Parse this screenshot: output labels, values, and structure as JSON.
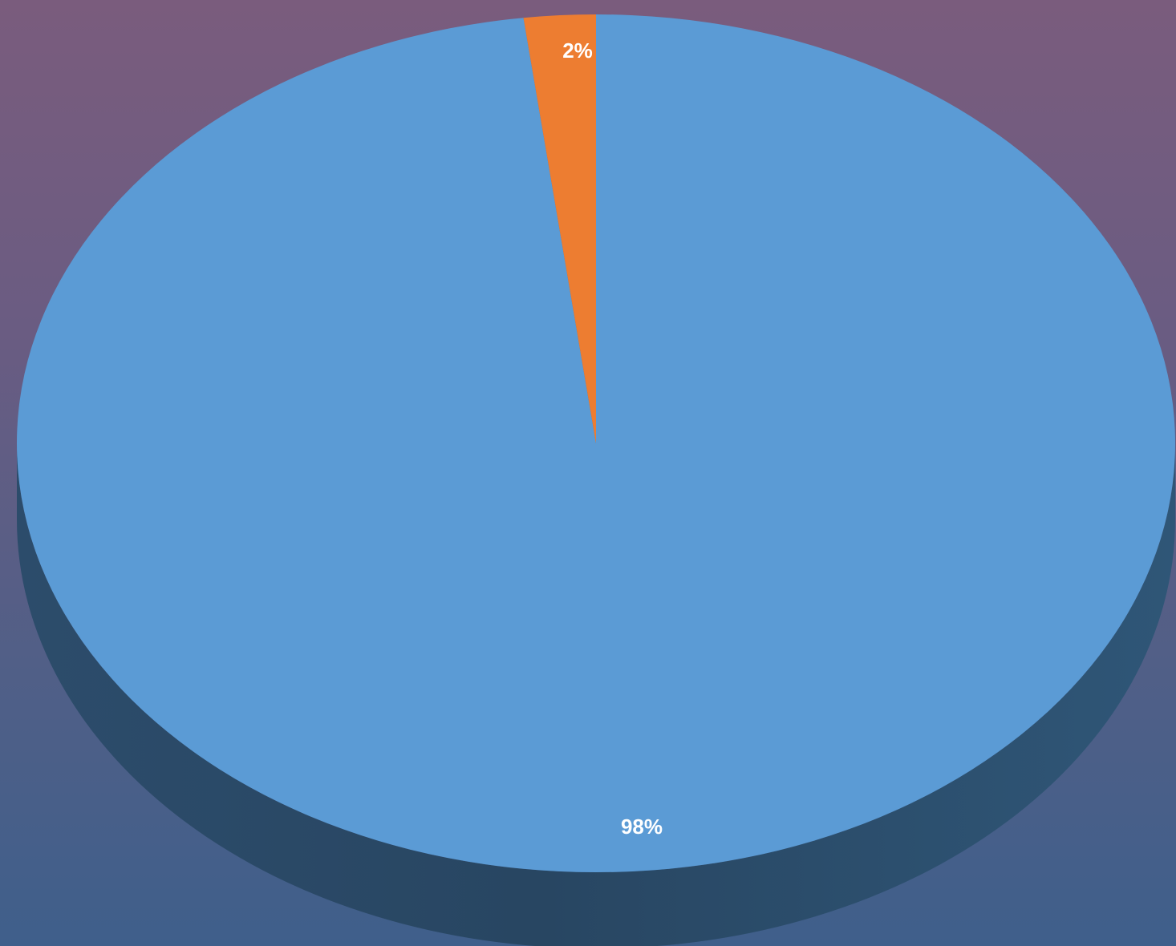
{
  "chart_data": {
    "type": "pie",
    "style": "3d",
    "slices": [
      {
        "label": "98%",
        "value": 98,
        "color": "#5b9bd5"
      },
      {
        "label": "2%",
        "value": 2,
        "color": "#ed7d31"
      }
    ],
    "legend": "none",
    "grid": false
  },
  "colors": {
    "background_top": "#7a5c7d",
    "background_bottom": "#3f5f8b",
    "pie_side": "#2d5170"
  }
}
